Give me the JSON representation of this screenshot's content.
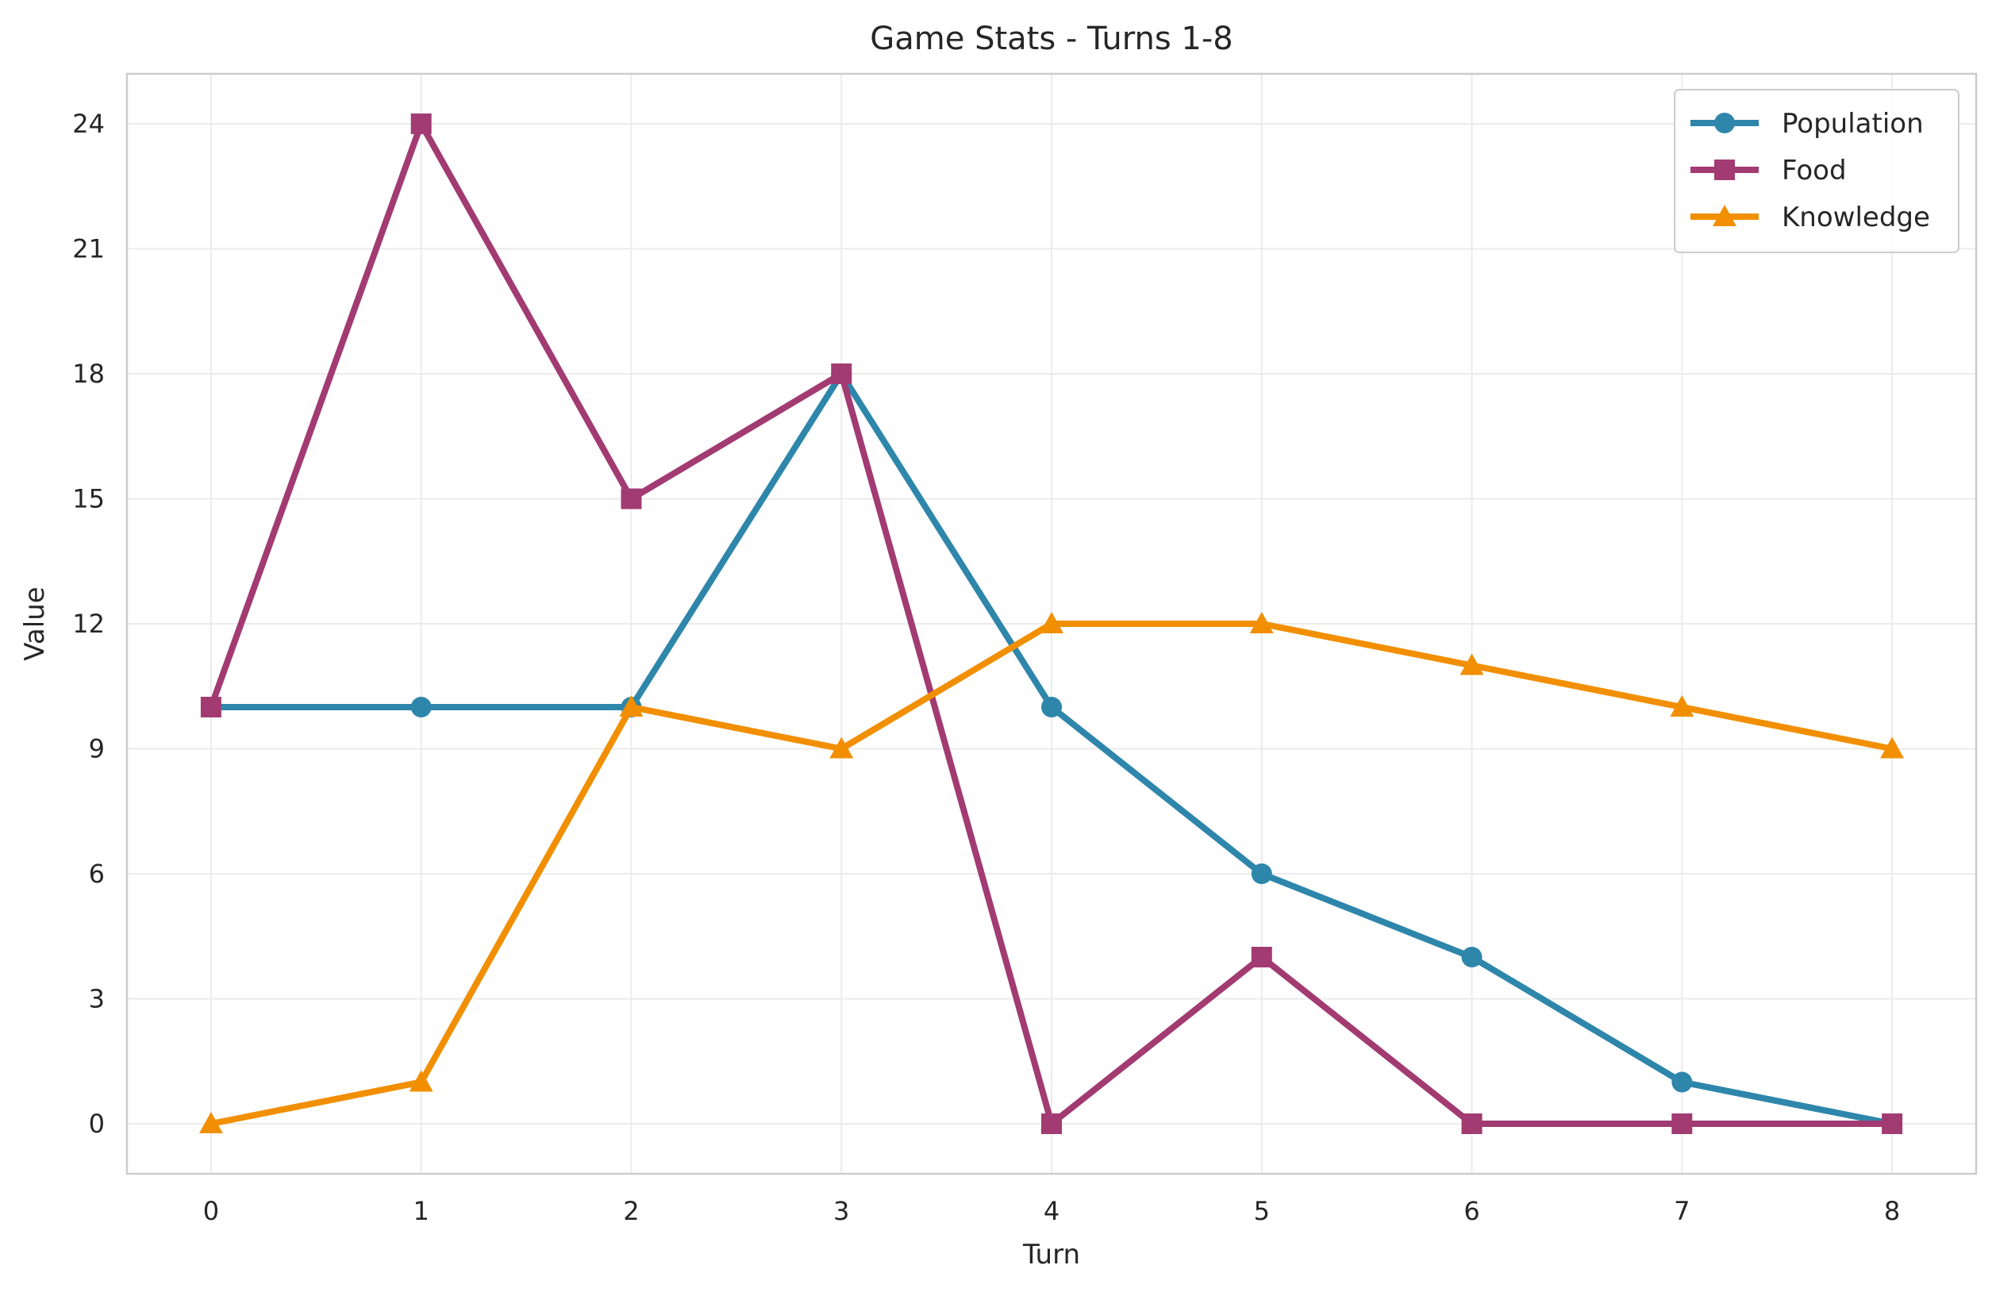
{
  "chart_data": {
    "type": "line",
    "title": "Game Stats - Turns 1-8",
    "xlabel": "Turn",
    "ylabel": "Value",
    "x": [
      0,
      1,
      2,
      3,
      4,
      5,
      6,
      7,
      8
    ],
    "xticks": [
      "0",
      "1",
      "2",
      "3",
      "4",
      "5",
      "6",
      "7",
      "8"
    ],
    "yticks": [
      0,
      3,
      6,
      9,
      12,
      15,
      18,
      21,
      24
    ],
    "xlim": [
      -0.4,
      8.4
    ],
    "ylim": [
      -1.2,
      25.2
    ],
    "grid": true,
    "legend_position": "top-right",
    "series": [
      {
        "name": "Population",
        "color": "#2e86ab",
        "marker": "circle",
        "values": [
          10,
          10,
          10,
          18,
          10,
          6,
          4,
          1,
          0
        ]
      },
      {
        "name": "Food",
        "color": "#a23b72",
        "marker": "square",
        "values": [
          10,
          24,
          15,
          18,
          0,
          4,
          0,
          0,
          0
        ]
      },
      {
        "name": "Knowledge",
        "color": "#f18f01",
        "marker": "triangle",
        "values": [
          0,
          1,
          10,
          9,
          12,
          12,
          11,
          10,
          9
        ]
      }
    ]
  }
}
